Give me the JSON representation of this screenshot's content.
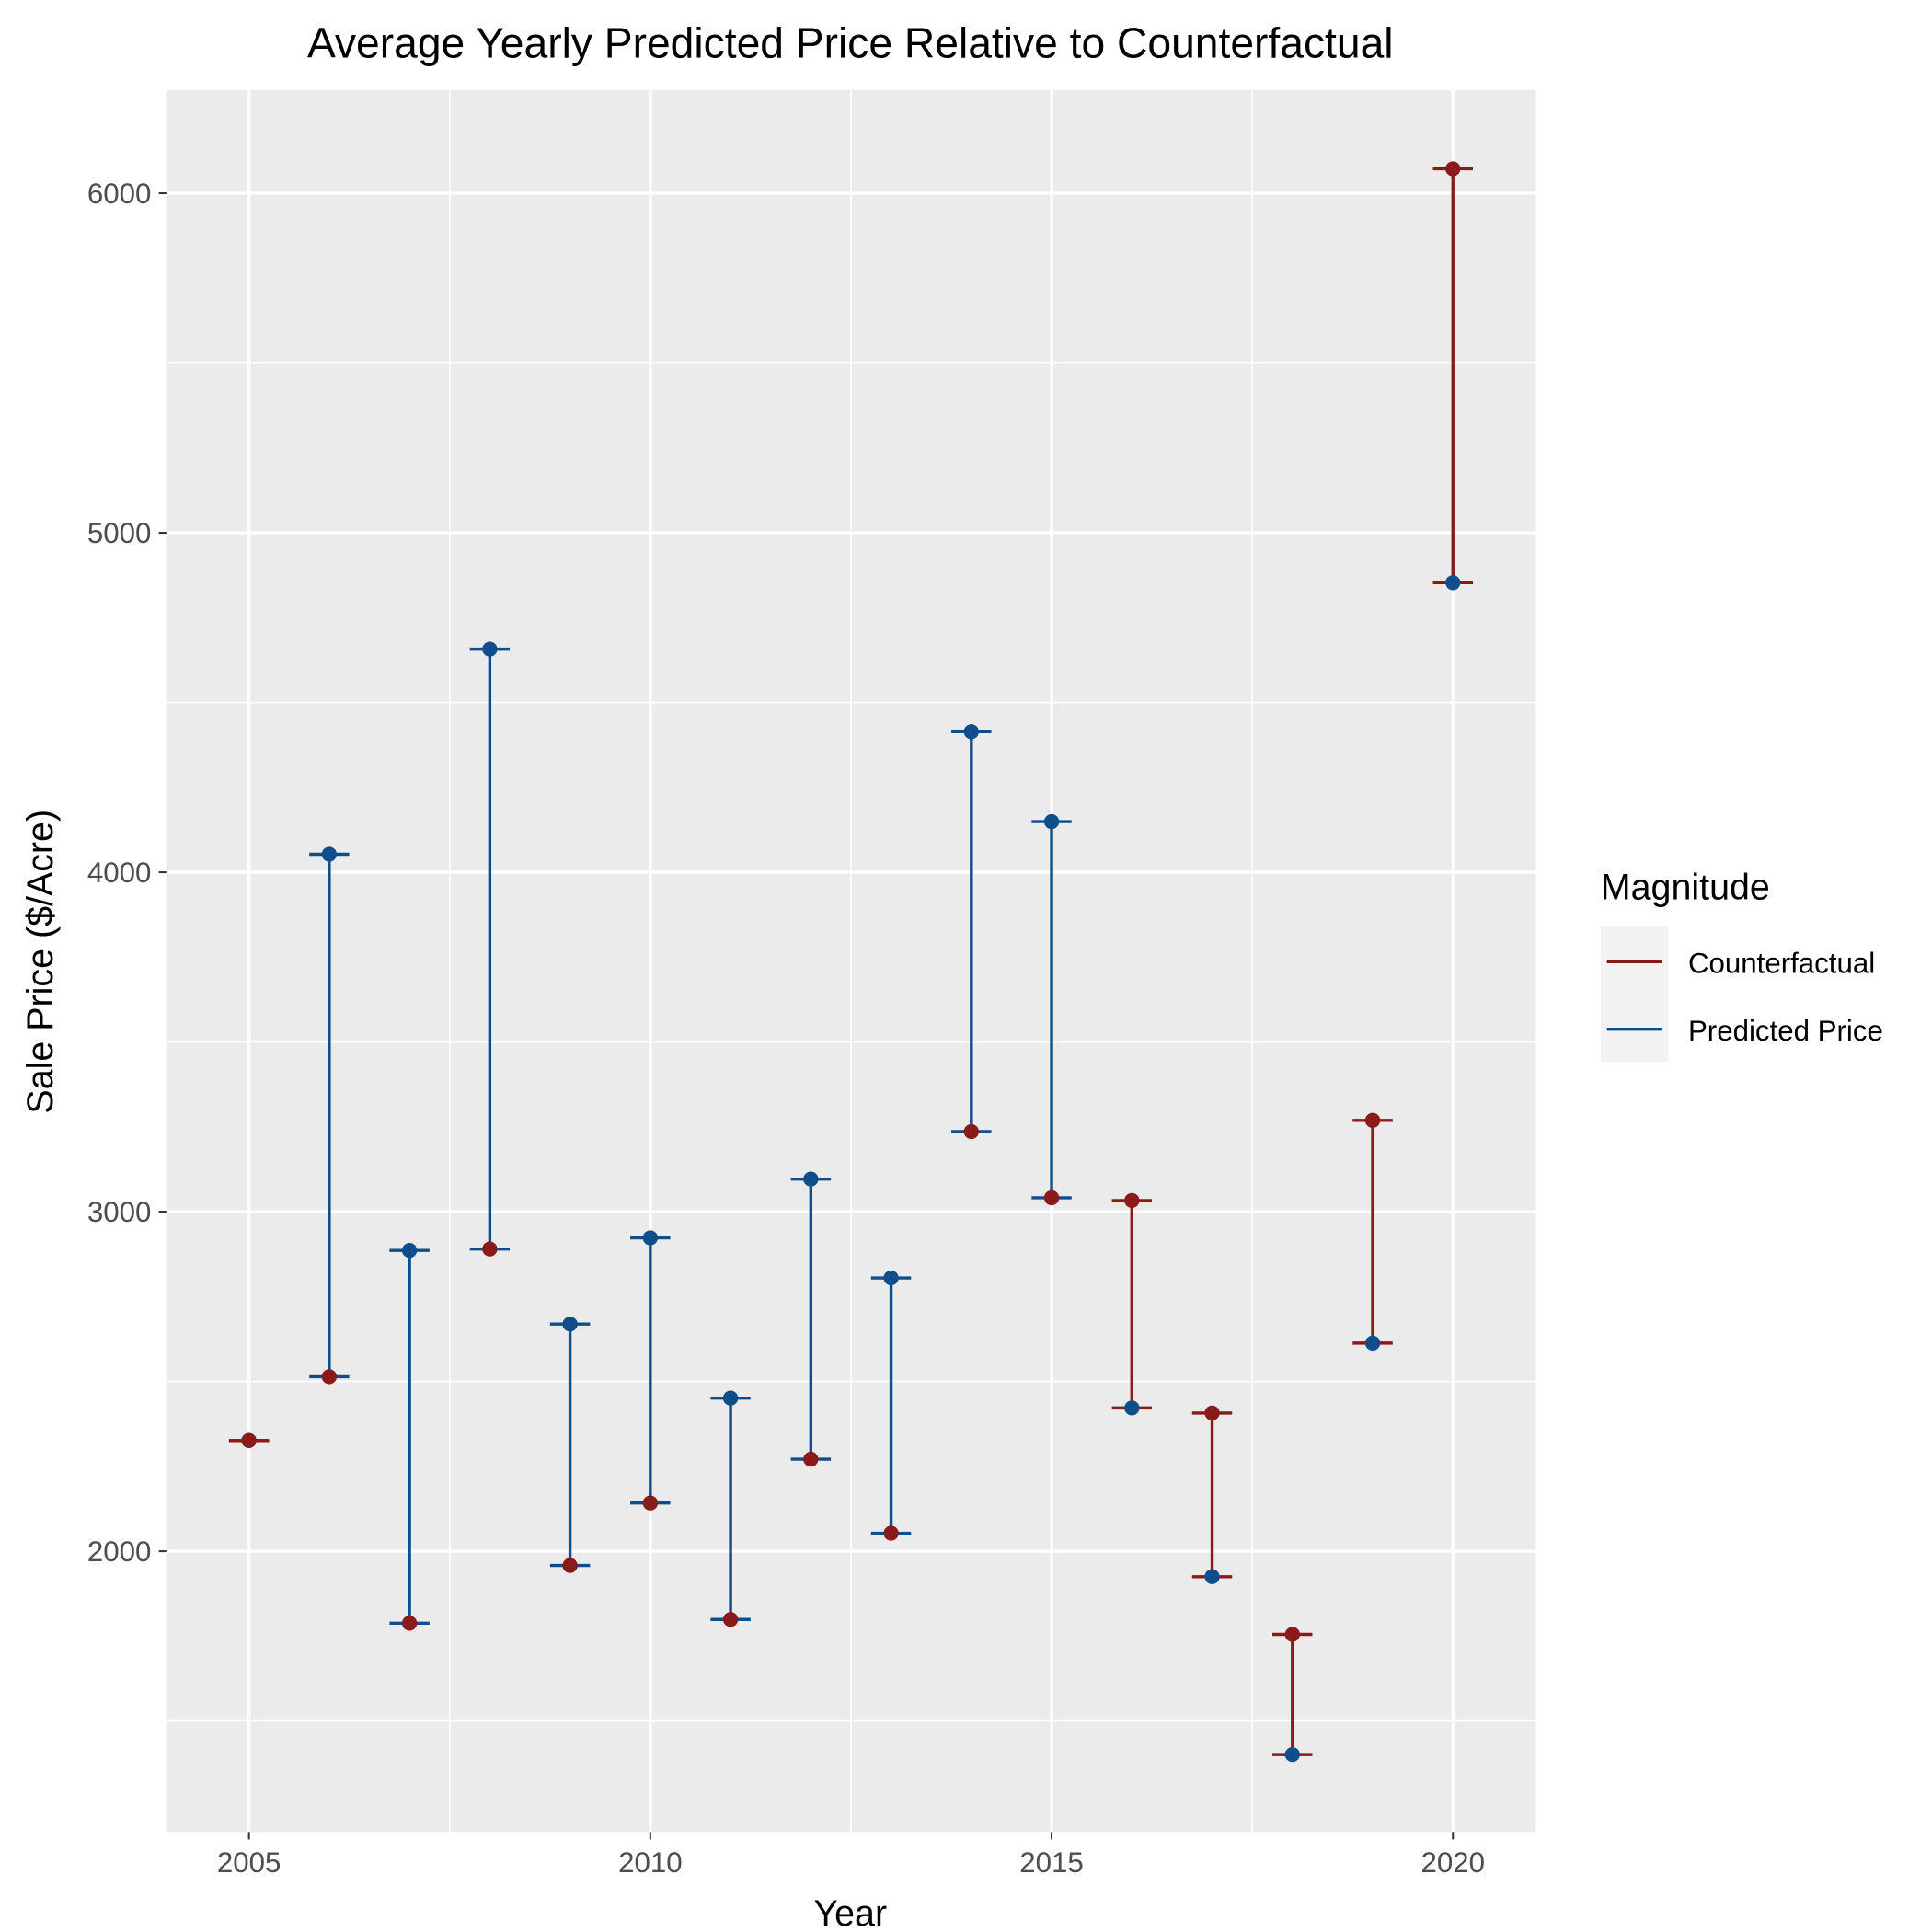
{
  "chart_data": {
    "type": "dumbbell",
    "title": "Average Yearly Predicted Price Relative to Counterfactual",
    "xlabel": "Year",
    "ylabel": "Sale Price ($/Acre)",
    "xlim": [
      2003.97,
      2021.03
    ],
    "ylim": [
      1173,
      6304
    ],
    "x_ticks": [
      2005,
      2010,
      2015,
      2020
    ],
    "y_ticks": [
      2000,
      3000,
      4000,
      5000,
      6000
    ],
    "grid": true,
    "legend": {
      "title": "Magnitude",
      "placement": "right",
      "entries": [
        "Counterfactual",
        "Predicted Price"
      ]
    },
    "colors": {
      "Counterfactual": "#8b1a1a",
      "Predicted Price": "#104e8b",
      "panel": "#ebebeb",
      "grid": "#ffffff"
    },
    "years": [
      2005,
      2006,
      2007,
      2008,
      2009,
      2010,
      2011,
      2012,
      2013,
      2014,
      2015,
      2016,
      2017,
      2018,
      2019,
      2020
    ],
    "series": [
      {
        "name": "Counterfactual",
        "values": [
          2326,
          2514,
          1788,
          2890,
          1958,
          2142,
          1799,
          2271,
          2053,
          3236,
          3041,
          3033,
          2407,
          1755,
          3269,
          6072
        ]
      },
      {
        "name": "Predicted Price",
        "values": [
          2326,
          4053,
          2886,
          4657,
          2669,
          2923,
          2451,
          3096,
          2805,
          4414,
          4149,
          2422,
          1925,
          1401,
          2613,
          4853
        ]
      }
    ]
  }
}
